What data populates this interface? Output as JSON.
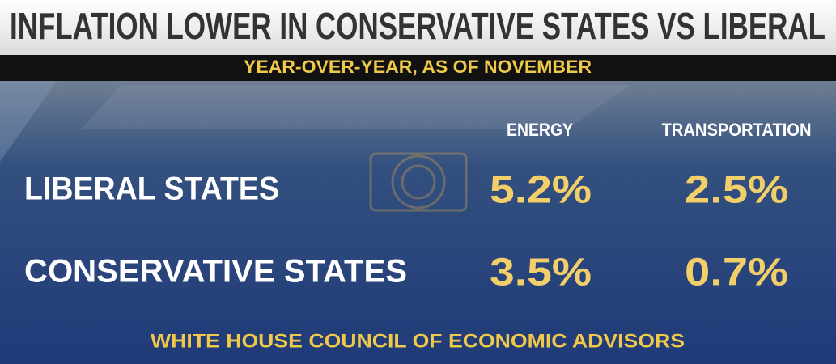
{
  "header": {
    "title": "INFLATION LOWER IN CONSERVATIVE STATES VS LIBERAL",
    "subtitle": "YEAR-OVER-YEAR, AS OF NOVEMBER"
  },
  "table": {
    "columns": [
      "ENERGY",
      "TRANSPORTATION"
    ],
    "rows": [
      {
        "label": "LIBERAL STATES",
        "values": [
          "5.2%",
          "2.5%"
        ]
      },
      {
        "label": "CONSERVATIVE STATES",
        "values": [
          "3.5%",
          "0.7%"
        ]
      }
    ]
  },
  "source": "WHITE HOUSE COUNCIL OF ECONOMIC ADVISORS"
}
